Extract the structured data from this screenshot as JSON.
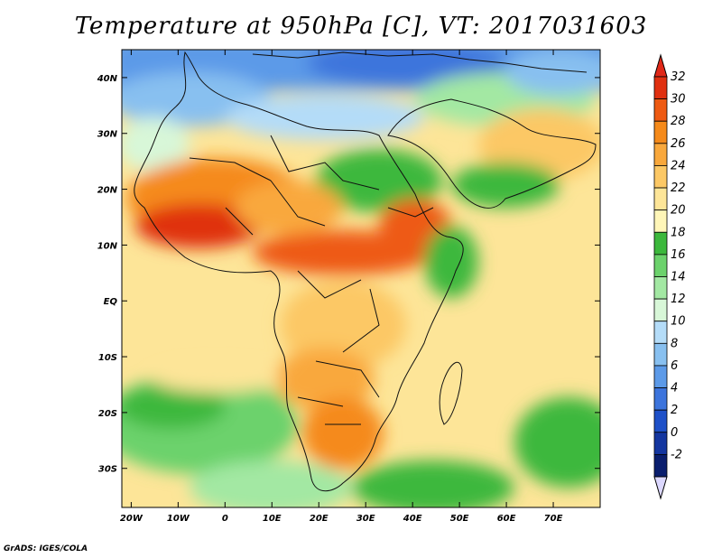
{
  "title": "Temperature at 950hPa [C], VT: 2017031603",
  "credit": "GrADS: IGES/COLA",
  "map": {
    "lon_range": [
      -22,
      80
    ],
    "lat_range": [
      -37,
      45
    ],
    "lat_labels": [
      "40N",
      "30N",
      "20N",
      "10N",
      "EQ",
      "10S",
      "20S",
      "30S"
    ],
    "lat_values": [
      40,
      30,
      20,
      10,
      0,
      -10,
      -20,
      -30
    ],
    "lon_labels": [
      "20W",
      "10W",
      "0",
      "10E",
      "20E",
      "30E",
      "40E",
      "50E",
      "60E",
      "70E"
    ],
    "lon_values": [
      -20,
      -10,
      0,
      10,
      20,
      30,
      40,
      50,
      60,
      70
    ]
  },
  "colorbar": {
    "labels": [
      "32",
      "30",
      "28",
      "26",
      "24",
      "22",
      "20",
      "18",
      "16",
      "14",
      "12",
      "10",
      "8",
      "6",
      "4",
      "2",
      "0",
      "-2"
    ],
    "colors": [
      "#e03010",
      "#ee5a12",
      "#f58a1a",
      "#f9a83c",
      "#fcc865",
      "#fde598",
      "#fff6b8",
      "#3cb83c",
      "#6cd26c",
      "#a3e8a3",
      "#d8f7d8",
      "#b4dcf8",
      "#88c0f0",
      "#5c9ae8",
      "#3c74dc",
      "#1e50c8",
      "#1436a0",
      "#0a1e6e"
    ],
    "max_color": "#e02818",
    "min_color": "#dcd8ff"
  }
}
